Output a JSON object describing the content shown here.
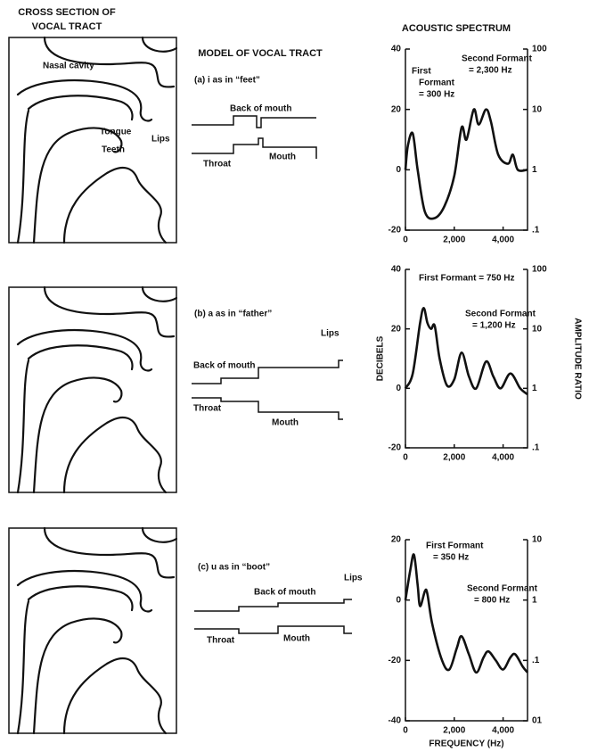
{
  "headers": {
    "cross_section": [
      "CROSS SECTION OF",
      "VOCAL TRACT"
    ],
    "model": "MODEL OF VOCAL TRACT",
    "spectrum": "ACOUSTIC SPECTRUM"
  },
  "panels": [
    {
      "caption": "(a)  i as in “feet”",
      "anatomy": [
        "Nasal cavity",
        "Tongue",
        "Teeth",
        "Lips"
      ],
      "model": [
        "Back of mouth",
        "Throat",
        "Mouth"
      ]
    },
    {
      "caption": "(b)  a as in “father”",
      "model": [
        "Back of mouth",
        "Lips",
        "Throat",
        "Mouth"
      ]
    },
    {
      "caption": "(c)  u as in “boot”",
      "model": [
        "Back of mouth",
        "Lips",
        "Throat",
        "Mouth"
      ]
    }
  ],
  "chart_data": [
    {
      "type": "line",
      "color": "#111",
      "x": [
        0,
        100,
        300,
        500,
        800,
        1200,
        1600,
        2000,
        2300,
        2500,
        2800,
        3000,
        3300,
        3500,
        3800,
        4200,
        4400,
        4600,
        5000
      ],
      "values": [
        0,
        8,
        12,
        0,
        -14,
        -16,
        -12,
        -2,
        14,
        10,
        20,
        15,
        20,
        16,
        5,
        2,
        5,
        0,
        0
      ],
      "xlim": [
        0,
        5000
      ],
      "xticks": [
        0,
        {
          "value": 2000,
          "label": "2,000"
        },
        {
          "value": 4000,
          "label": "4,000"
        }
      ],
      "ylim": [
        -20,
        40
      ],
      "yticks": [
        -20,
        0,
        20,
        40
      ],
      "y2lim": [
        0.1,
        100
      ],
      "y2ticks": [
        {
          "value": 0.1,
          "label": ".1"
        },
        1,
        10,
        100
      ],
      "y2log": true,
      "annotations": [
        [
          "First",
          "Formant",
          "= 300 Hz"
        ],
        [
          "Second Formant",
          "= 2,300 Hz"
        ]
      ]
    },
    {
      "type": "line",
      "color": "#111",
      "x": [
        0,
        300,
        600,
        750,
        900,
        1050,
        1200,
        1400,
        1700,
        2000,
        2300,
        2600,
        2900,
        3300,
        3600,
        3900,
        4300,
        4700,
        5000
      ],
      "values": [
        0,
        5,
        22,
        27,
        22,
        20,
        21,
        10,
        1,
        3,
        12,
        4,
        0,
        9,
        4,
        0,
        5,
        0,
        -2
      ],
      "xlim": [
        0,
        5000
      ],
      "xticks": [
        0,
        {
          "value": 2000,
          "label": "2,000"
        },
        {
          "value": 4000,
          "label": "4,000"
        }
      ],
      "ylim": [
        -20,
        40
      ],
      "yticks": [
        -20,
        0,
        20,
        40
      ],
      "y2lim": [
        0.1,
        100
      ],
      "y2ticks": [
        {
          "value": 0.1,
          "label": ".1"
        },
        1,
        10,
        100
      ],
      "y2log": true,
      "ylabel": "DECIBELS",
      "y2label": "AMPLITUDE RATIO",
      "annotations": [
        [
          "First Formant = 750 Hz"
        ],
        [
          "Second Formant",
          "= 1,200 Hz"
        ]
      ]
    },
    {
      "type": "line",
      "color": "#111",
      "x": [
        0,
        200,
        350,
        500,
        600,
        800,
        900,
        1100,
        1500,
        1800,
        2100,
        2300,
        2600,
        2900,
        3200,
        3400,
        3700,
        4000,
        4300,
        4500,
        4800,
        5000
      ],
      "values": [
        0,
        10,
        15,
        5,
        -2,
        3,
        2,
        -8,
        -20,
        -23,
        -16,
        -12,
        -18,
        -24,
        -19,
        -17,
        -20,
        -23,
        -19,
        -18,
        -22,
        -24
      ],
      "xlim": [
        0,
        5000
      ],
      "xticks": [
        0,
        {
          "value": 2000,
          "label": "2,000"
        },
        {
          "value": 4000,
          "label": "4,000"
        }
      ],
      "ylim": [
        -40,
        20
      ],
      "yticks": [
        -40,
        -20,
        0,
        20
      ],
      "y2lim": [
        0.01,
        10
      ],
      "y2ticks": [
        {
          "value": 0.01,
          "label": "01"
        },
        {
          "value": 0.1,
          "label": ".1"
        },
        1,
        10
      ],
      "y2log": true,
      "xlabel": "FREQUENCY (Hz)",
      "annotations": [
        [
          "First Formant",
          "= 350 Hz"
        ],
        [
          "Second Formant",
          "= 800 Hz"
        ]
      ]
    }
  ]
}
